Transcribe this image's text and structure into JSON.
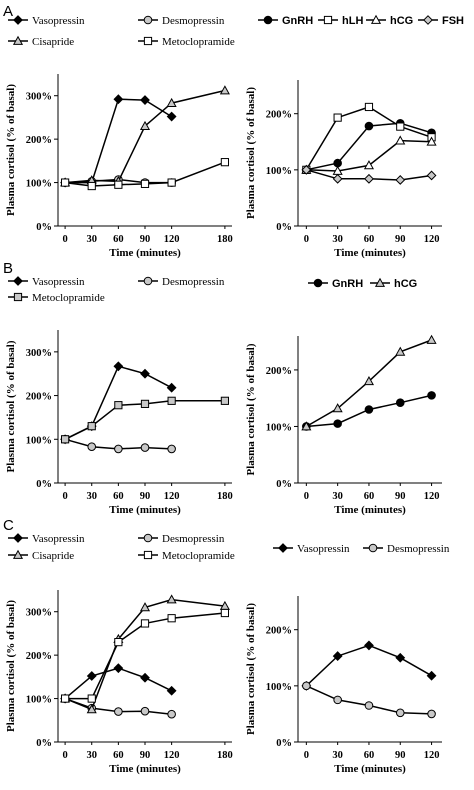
{
  "panel_letters": [
    "A",
    "B",
    "C"
  ],
  "chart_data": [
    {
      "id": "A-left",
      "panel": "A",
      "type": "line",
      "xlabel": "Time (minutes)",
      "ylabel": "Plasma cortisol (% of basal)",
      "xticks": [
        0,
        30,
        60,
        90,
        120,
        180
      ],
      "yticks": [
        0,
        100,
        200,
        300
      ],
      "ylim": [
        0,
        350
      ],
      "xlim": [
        -8,
        188
      ],
      "series": [
        {
          "name": "Vasopressin",
          "marker": "diamond",
          "color": "#000000",
          "x": [
            0,
            30,
            60,
            90,
            120
          ],
          "y": [
            100,
            100,
            292,
            290,
            252
          ]
        },
        {
          "name": "Desmopressin",
          "marker": "circle",
          "color": "#c8c8c8",
          "x": [
            0,
            30,
            60,
            90,
            120
          ],
          "y": [
            100,
            103,
            107,
            100,
            100
          ]
        },
        {
          "name": "Cisapride",
          "marker": "triangle",
          "color": "#c8c8c8",
          "x": [
            0,
            30,
            60,
            90,
            120,
            180
          ],
          "y": [
            100,
            105,
            103,
            230,
            283,
            312
          ]
        },
        {
          "name": "Metoclopramide",
          "marker": "square",
          "color": "#ffffff",
          "x": [
            0,
            30,
            60,
            90,
            120,
            180
          ],
          "y": [
            100,
            92,
            95,
            97,
            100,
            147
          ]
        }
      ]
    },
    {
      "id": "A-right",
      "panel": "A",
      "type": "line",
      "xlabel": "Time (minutes)",
      "ylabel": "Plasma cortisol (% of basal)",
      "xticks": [
        0,
        30,
        60,
        90,
        120
      ],
      "yticks": [
        0,
        100,
        200
      ],
      "ylim": [
        0,
        260
      ],
      "xlim": [
        -8,
        130
      ],
      "series": [
        {
          "name": "GnRH",
          "marker": "circle",
          "color": "#000000",
          "x": [
            0,
            30,
            60,
            90,
            120
          ],
          "y": [
            100,
            112,
            178,
            183,
            166
          ]
        },
        {
          "name": "hLH",
          "marker": "square",
          "color": "#ffffff",
          "x": [
            0,
            30,
            60,
            90,
            120
          ],
          "y": [
            100,
            193,
            212,
            177,
            158
          ]
        },
        {
          "name": "hCG",
          "marker": "triangle",
          "color": "#ffffff",
          "x": [
            0,
            30,
            60,
            90,
            120
          ],
          "y": [
            100,
            98,
            108,
            152,
            150
          ]
        },
        {
          "name": "FSH",
          "marker": "diamond",
          "color": "#c8c8c8",
          "x": [
            0,
            30,
            60,
            90,
            120
          ],
          "y": [
            100,
            84,
            84,
            82,
            90
          ]
        }
      ]
    },
    {
      "id": "B-left",
      "panel": "B",
      "type": "line",
      "xlabel": "Time (minutes)",
      "ylabel": "Plasma cortisol (% of basal)",
      "xticks": [
        0,
        30,
        60,
        90,
        120,
        180
      ],
      "yticks": [
        0,
        100,
        200,
        300
      ],
      "ylim": [
        0,
        350
      ],
      "xlim": [
        -8,
        188
      ],
      "series": [
        {
          "name": "Vasopressin",
          "marker": "diamond",
          "color": "#000000",
          "x": [
            0,
            30,
            60,
            90,
            120
          ],
          "y": [
            100,
            130,
            267,
            250,
            218
          ]
        },
        {
          "name": "Desmopressin",
          "marker": "circle",
          "color": "#c8c8c8",
          "x": [
            0,
            30,
            60,
            90,
            120
          ],
          "y": [
            100,
            83,
            78,
            81,
            78
          ]
        },
        {
          "name": "Metoclopramide",
          "marker": "square",
          "color": "#c8c8c8",
          "x": [
            0,
            30,
            60,
            90,
            120,
            180
          ],
          "y": [
            100,
            130,
            178,
            181,
            188,
            188
          ]
        }
      ]
    },
    {
      "id": "B-right",
      "panel": "B",
      "type": "line",
      "xlabel": "Time (minutes)",
      "ylabel": "Plasma cortisol (% of basal)",
      "xticks": [
        0,
        30,
        60,
        90,
        120
      ],
      "yticks": [
        0,
        100,
        200
      ],
      "ylim": [
        0,
        260
      ],
      "xlim": [
        -8,
        130
      ],
      "series": [
        {
          "name": "GnRH",
          "marker": "circle",
          "color": "#000000",
          "x": [
            0,
            30,
            60,
            90,
            120
          ],
          "y": [
            100,
            105,
            130,
            142,
            155
          ]
        },
        {
          "name": "hCG",
          "marker": "triangle",
          "color": "#c8c8c8",
          "x": [
            0,
            30,
            60,
            90,
            120
          ],
          "y": [
            100,
            132,
            180,
            232,
            253
          ]
        }
      ]
    },
    {
      "id": "C-left",
      "panel": "C",
      "type": "line",
      "xlabel": "Time (minutes)",
      "ylabel": "Plasma cortisol (% of basal)",
      "xticks": [
        0,
        30,
        60,
        90,
        120,
        180
      ],
      "yticks": [
        0,
        100,
        200,
        300
      ],
      "ylim": [
        0,
        350
      ],
      "xlim": [
        -8,
        188
      ],
      "series": [
        {
          "name": "Vasopressin",
          "marker": "diamond",
          "color": "#000000",
          "x": [
            0,
            30,
            60,
            90,
            120
          ],
          "y": [
            100,
            152,
            170,
            148,
            118
          ]
        },
        {
          "name": "Desmopressin",
          "marker": "circle",
          "color": "#c8c8c8",
          "x": [
            0,
            30,
            60,
            90,
            120
          ],
          "y": [
            100,
            78,
            70,
            71,
            64
          ]
        },
        {
          "name": "Cisapride",
          "marker": "triangle",
          "color": "#c8c8c8",
          "x": [
            0,
            30,
            60,
            90,
            120,
            180
          ],
          "y": [
            100,
            75,
            237,
            310,
            328,
            313
          ]
        },
        {
          "name": "Metoclopramide",
          "marker": "square",
          "color": "#ffffff",
          "x": [
            0,
            30,
            60,
            90,
            120,
            180
          ],
          "y": [
            100,
            100,
            230,
            273,
            285,
            297
          ]
        }
      ]
    },
    {
      "id": "C-right",
      "panel": "C",
      "type": "line",
      "xlabel": "Time (minutes)",
      "ylabel": "Plasma cortisol (% of basal)",
      "xticks": [
        0,
        30,
        60,
        90,
        120
      ],
      "yticks": [
        0,
        100,
        200
      ],
      "ylim": [
        0,
        260
      ],
      "xlim": [
        -8,
        130
      ],
      "series": [
        {
          "name": "Vasopressin",
          "marker": "diamond",
          "color": "#000000",
          "x": [
            0,
            30,
            60,
            90,
            120
          ],
          "y": [
            100,
            153,
            172,
            150,
            118
          ]
        },
        {
          "name": "Desmopressin",
          "marker": "circle",
          "color": "#c8c8c8",
          "x": [
            0,
            30,
            60,
            90,
            120
          ],
          "y": [
            100,
            75,
            65,
            52,
            50
          ]
        }
      ]
    }
  ],
  "legends": [
    {
      "panel": "A",
      "entries": [
        {
          "name": "Vasopressin",
          "marker": "diamond",
          "color": "#000000"
        },
        {
          "name": "Desmopressin",
          "marker": "circle",
          "color": "#c8c8c8"
        },
        {
          "name": "Cisapride",
          "marker": "triangle",
          "color": "#c8c8c8"
        },
        {
          "name": "Metoclopramide",
          "marker": "square",
          "color": "#ffffff"
        },
        {
          "name": "GnRH",
          "marker": "circle",
          "color": "#000000"
        },
        {
          "name": "hLH",
          "marker": "square",
          "color": "#ffffff"
        },
        {
          "name": "hCG",
          "marker": "triangle",
          "color": "#ffffff"
        },
        {
          "name": "FSH",
          "marker": "diamond",
          "color": "#c8c8c8"
        }
      ]
    },
    {
      "panel": "B",
      "entries": [
        {
          "name": "Vasopressin",
          "marker": "diamond",
          "color": "#000000"
        },
        {
          "name": "Desmopressin",
          "marker": "circle",
          "color": "#c8c8c8"
        },
        {
          "name": "Metoclopramide",
          "marker": "square",
          "color": "#c8c8c8"
        },
        {
          "name": "GnRH",
          "marker": "circle",
          "color": "#000000"
        },
        {
          "name": "hCG",
          "marker": "triangle",
          "color": "#c8c8c8"
        }
      ]
    },
    {
      "panel": "C",
      "entries": [
        {
          "name": "Vasopressin",
          "marker": "diamond",
          "color": "#000000"
        },
        {
          "name": "Desmopressin",
          "marker": "circle",
          "color": "#c8c8c8"
        },
        {
          "name": "Cisapride",
          "marker": "triangle",
          "color": "#c8c8c8"
        },
        {
          "name": "Metoclopramide",
          "marker": "square",
          "color": "#ffffff"
        },
        {
          "name": "Vasopressin",
          "marker": "diamond",
          "color": "#000000"
        },
        {
          "name": "Desmopressin",
          "marker": "circle",
          "color": "#c8c8c8"
        }
      ]
    }
  ]
}
